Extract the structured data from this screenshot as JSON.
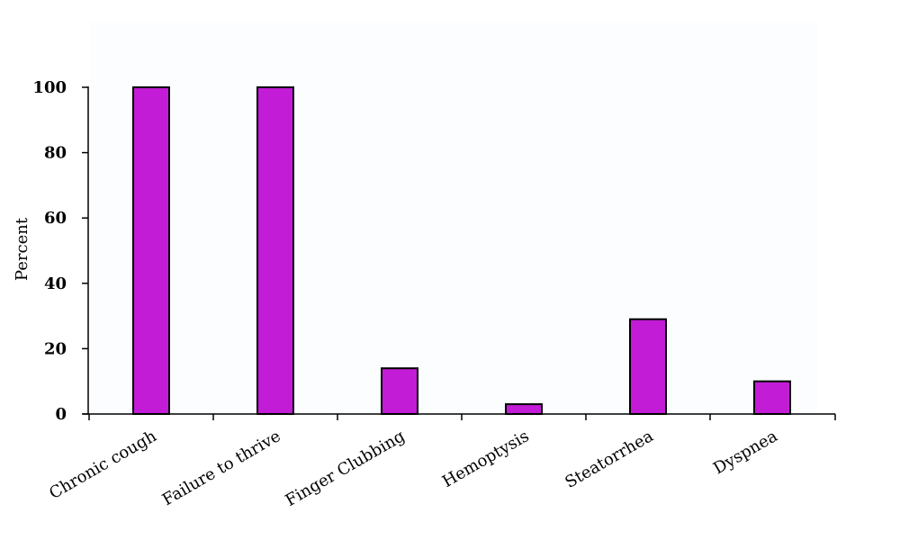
{
  "chart_data": {
    "type": "bar",
    "title": "",
    "xlabel": "",
    "ylabel": "Percent",
    "categories": [
      "Chronic cough",
      "Failure to thrive",
      "Finger Clubbing",
      "Hemoptysis",
      "Steatorrhea",
      "Dyspnea"
    ],
    "values": [
      100,
      100,
      14,
      3,
      29,
      10
    ],
    "ylim": [
      0,
      100
    ],
    "yticks": [
      0,
      20,
      40,
      60,
      80,
      100
    ],
    "grid": false,
    "legend": "none",
    "colors": {
      "bar_fill": "#c21cd6",
      "bar_stroke": "#000000",
      "plot_background": "#fbfdff"
    }
  }
}
